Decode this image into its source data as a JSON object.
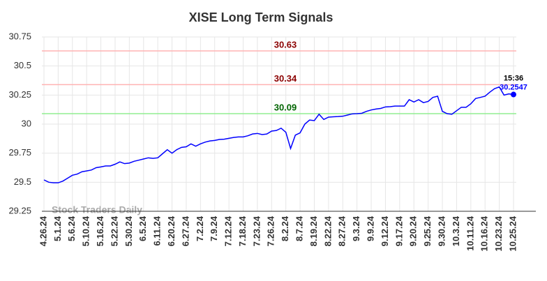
{
  "chart_data": {
    "type": "line",
    "title": "XISE Long Term Signals",
    "watermark": "Stock Traders Daily",
    "categories": [
      "4.26.24",
      null,
      null,
      "5.1.24",
      null,
      null,
      "5.6.24",
      null,
      null,
      "5.10.24",
      null,
      null,
      "5.16.24",
      null,
      null,
      "5.22.24",
      null,
      null,
      "5.30.24",
      null,
      null,
      "6.5.24",
      null,
      null,
      "6.11.24",
      null,
      null,
      "6.20.24",
      null,
      null,
      "6.27.24",
      null,
      null,
      "7.2.24",
      null,
      null,
      "7.9.24",
      null,
      null,
      "7.12.24",
      null,
      null,
      "7.18.24",
      null,
      null,
      "7.23.24",
      null,
      null,
      "7.26.24",
      null,
      null,
      "8.2.24",
      null,
      null,
      "8.7.24",
      null,
      null,
      "8.19.24",
      null,
      null,
      "8.22.24",
      null,
      null,
      "8.27.24",
      null,
      null,
      "9.3.24",
      null,
      null,
      "9.9.24",
      null,
      null,
      "9.12.24",
      null,
      null,
      "9.17.24",
      null,
      null,
      "9.20.24",
      null,
      null,
      "9.25.24",
      null,
      null,
      "9.30.24",
      null,
      null,
      "10.3.24",
      null,
      null,
      "10.11.24",
      null,
      null,
      "10.16.24",
      null,
      null,
      "10.23.24",
      null,
      null,
      "10.25.24"
    ],
    "values": [
      29.52,
      29.5,
      29.495,
      29.495,
      29.51,
      29.535,
      29.56,
      29.57,
      29.59,
      29.597,
      29.605,
      29.625,
      29.632,
      29.64,
      29.64,
      29.655,
      29.675,
      29.66,
      29.665,
      29.68,
      29.69,
      29.7,
      29.71,
      29.705,
      29.71,
      29.745,
      29.78,
      29.75,
      29.78,
      29.8,
      29.805,
      29.83,
      29.81,
      29.83,
      29.845,
      29.855,
      29.86,
      29.868,
      29.87,
      29.878,
      29.885,
      29.89,
      29.89,
      29.9,
      29.915,
      29.92,
      29.91,
      29.915,
      29.94,
      29.945,
      29.965,
      29.93,
      29.79,
      29.905,
      29.925,
      30.0,
      30.035,
      30.03,
      30.085,
      30.04,
      30.06,
      30.063,
      30.065,
      30.068,
      30.078,
      30.088,
      30.09,
      30.093,
      30.11,
      30.122,
      30.13,
      30.135,
      30.148,
      30.15,
      30.155,
      30.155,
      30.155,
      30.21,
      30.19,
      30.21,
      30.185,
      30.195,
      30.23,
      30.24,
      30.11,
      30.09,
      30.085,
      30.115,
      30.145,
      30.145,
      30.175,
      30.22,
      30.23,
      30.24,
      30.275,
      30.305,
      30.32,
      30.25,
      30.26,
      30.2547
    ],
    "color": "#0000ff",
    "last_time": "15:36",
    "levels": [
      {
        "value": 30.63,
        "color": "#ffb3b3",
        "label_color": "#8b0000"
      },
      {
        "value": 30.34,
        "color": "#ffb3b3",
        "label_color": "#8b0000"
      },
      {
        "value": 30.09,
        "color": "#90ee90",
        "label_color": "#006400"
      }
    ],
    "ylim": [
      29.25,
      30.75
    ],
    "yticks": [
      29.25,
      29.5,
      29.75,
      30,
      30.25,
      30.5,
      30.75
    ],
    "grid": true
  }
}
